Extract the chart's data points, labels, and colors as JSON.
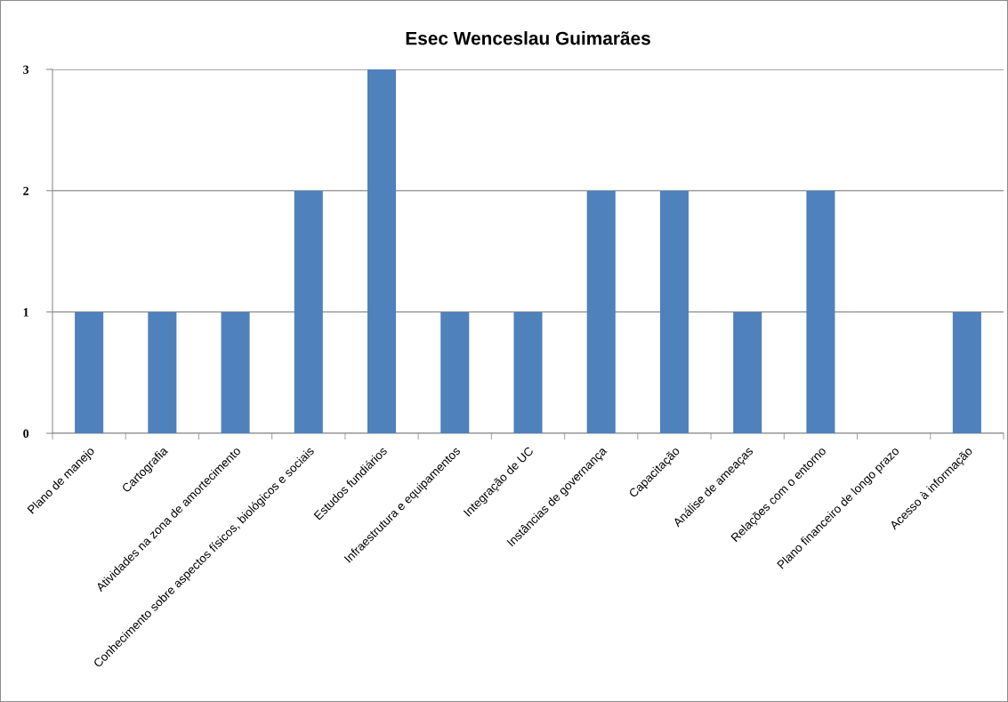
{
  "chart_data": {
    "type": "bar",
    "title": "Esec Wenceslau Guimarães",
    "categories": [
      "Plano de manejo",
      "Cartografia",
      "Atividades na zona de amortecimento",
      "Conhecimento sobre aspectos físicos, biológicos e sociais",
      "Estudos fundiários",
      "Infraestrutura e equipamentos",
      "Integração de UC",
      "Instâncias de governança",
      "Capacitação",
      "Análise de ameaças",
      "Relações com o entorno",
      "Plano financeiro de longo prazo",
      "Acesso à informação"
    ],
    "values": [
      1,
      1,
      1,
      2,
      3,
      1,
      1,
      2,
      2,
      1,
      2,
      0,
      1
    ],
    "color": "#4f81bd",
    "ylim": [
      0,
      3
    ],
    "yticks": [
      0,
      1,
      2,
      3
    ],
    "grid": "y"
  }
}
